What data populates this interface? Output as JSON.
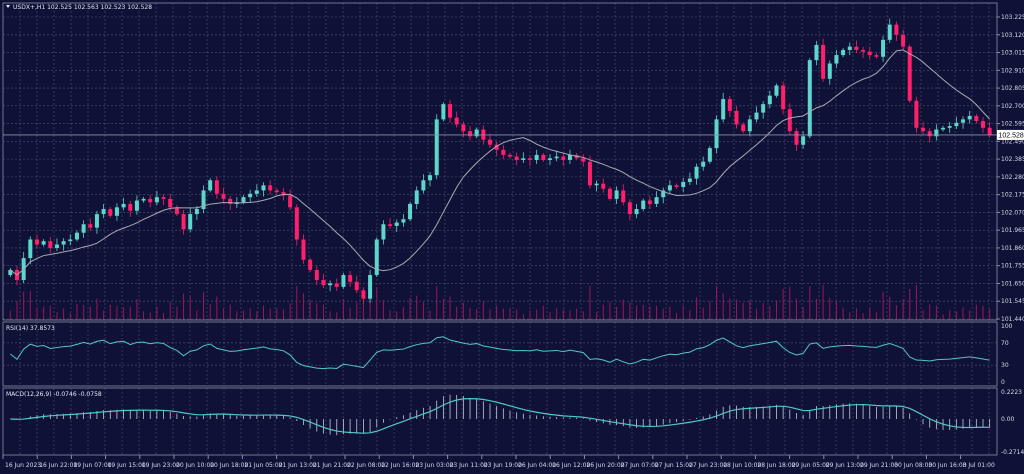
{
  "header": {
    "symbol_label": "USDX+,H1 102.525 102.563 102.523 102.528",
    "rsi_label": "RSI(14) 37.8573",
    "macd_label": "MACD(12,26,9) -0.0746 -0.0758"
  },
  "colors": {
    "background": "#0f1236",
    "grid": "#4b5278",
    "bull": "#5fd6cb",
    "bear": "#ff1f6a",
    "ma": "#a9a9b4",
    "indicator": "#4fc9c4",
    "volume": "#a0145a"
  },
  "chart_data": [
    {
      "type": "candlestick",
      "title": "USDX+,H1",
      "ylim": [
        101.44,
        103.225
      ],
      "y_ticks": [
        "103.225",
        "103.120",
        "103.015",
        "102.910",
        "102.805",
        "102.700",
        "102.595",
        "102.490",
        "102.385",
        "102.280",
        "102.175",
        "102.070",
        "101.965",
        "101.860",
        "101.755",
        "101.650",
        "101.545",
        "101.440"
      ],
      "current_price": "102.528",
      "x_ticks": [
        "16 Jun 2023",
        "16 Jun 22:00",
        "19 Jun 07:00",
        "19 Jun 15:00",
        "19 Jun 23:00",
        "20 Jun 10:00",
        "20 Jun 18:00",
        "21 Jun 05:00",
        "21 Jun 13:00",
        "21 Jun 21:00",
        "22 Jun 08:00",
        "22 Jun 16:00",
        "23 Jun 03:00",
        "23 Jun 11:00",
        "23 Jun 19:00",
        "26 Jun 04:00",
        "26 Jun 12:00",
        "26 Jun 20:00",
        "27 Jun 07:00",
        "27 Jun 15:00",
        "27 Jun 23:00",
        "28 Jun 10:00",
        "28 Jun 18:00",
        "29 Jun 05:00",
        "29 Jun 13:00",
        "29 Jun 21:00",
        "30 Jun 08:00",
        "30 Jun 16:00",
        "3 Jul 01:00"
      ],
      "closes": [
        101.73,
        101.67,
        101.8,
        101.91,
        101.88,
        101.9,
        101.86,
        101.88,
        101.9,
        101.91,
        101.95,
        102.0,
        101.98,
        102.06,
        102.09,
        102.05,
        102.1,
        102.12,
        102.08,
        102.14,
        102.15,
        102.13,
        102.16,
        102.15,
        102.1,
        102.06,
        101.97,
        102.06,
        102.09,
        102.2,
        102.26,
        102.18,
        102.15,
        102.12,
        102.13,
        102.16,
        102.18,
        102.2,
        102.23,
        102.2,
        102.19,
        102.17,
        102.1,
        101.91,
        101.79,
        101.73,
        101.67,
        101.64,
        101.65,
        101.63,
        101.7,
        101.66,
        101.61,
        101.56,
        101.7,
        101.91,
        102.0,
        101.99,
        102.01,
        102.03,
        102.12,
        102.2,
        102.26,
        102.29,
        102.62,
        102.71,
        102.63,
        102.59,
        102.55,
        102.52,
        102.56,
        102.5,
        102.47,
        102.44,
        102.41,
        102.4,
        102.38,
        102.39,
        102.38,
        102.41,
        102.38,
        102.39,
        102.4,
        102.38,
        102.41,
        102.39,
        102.37,
        102.23,
        102.24,
        102.21,
        102.15,
        102.2,
        102.13,
        102.06,
        102.09,
        102.14,
        102.12,
        102.16,
        102.2,
        102.23,
        102.22,
        102.25,
        102.27,
        102.34,
        102.37,
        102.45,
        102.62,
        102.74,
        102.67,
        102.59,
        102.55,
        102.62,
        102.66,
        102.71,
        102.76,
        102.82,
        102.68,
        102.55,
        102.47,
        102.52,
        102.97,
        103.06,
        102.86,
        102.95,
        103.0,
        103.03,
        103.05,
        103.03,
        103.02,
        103.0,
        102.99,
        103.09,
        103.18,
        103.12,
        103.05,
        102.73,
        102.57,
        102.55,
        102.52,
        102.56,
        102.57,
        102.58,
        102.6,
        102.62,
        102.64,
        102.61,
        102.57,
        102.53
      ]
    },
    {
      "type": "line",
      "title": "RSI(14)",
      "ylim": [
        0,
        100
      ],
      "y_ticks": [
        "100",
        "70",
        "30",
        "0"
      ]
    },
    {
      "type": "bar+line",
      "title": "MACD(12,26,9)",
      "ylim": [
        -0.2714,
        0.2223
      ],
      "y_ticks": [
        "0.2223",
        "0.00",
        "-0.2714"
      ]
    }
  ]
}
